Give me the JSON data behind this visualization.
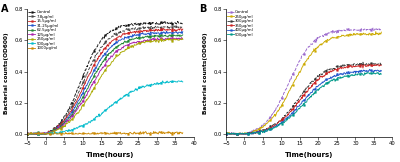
{
  "panel_A": {
    "title": "A",
    "xlabel": "Time(hours)",
    "ylabel": "Bacterial counts(OD600)",
    "xlim": [
      -5,
      40
    ],
    "ylim": [
      -0.02,
      0.8
    ],
    "xticks": [
      -5,
      0,
      5,
      10,
      15,
      20,
      25,
      30,
      35,
      40
    ],
    "yticks": [
      0.0,
      0.2,
      0.4,
      0.6,
      0.8
    ],
    "series": [
      {
        "label": "Control",
        "color": "#111111",
        "style": "--",
        "marker": "s",
        "lag": 9.5,
        "rate": 0.32,
        "ymax": 0.745
      },
      {
        "label": "7.8μg/ml",
        "color": "#444444",
        "style": "--",
        "marker": "s",
        "lag": 10.0,
        "rate": 0.3,
        "ymax": 0.72
      },
      {
        "label": "15.5μg/ml",
        "color": "#cc2222",
        "style": "-",
        "marker": "s",
        "lag": 10.5,
        "rate": 0.29,
        "ymax": 0.7
      },
      {
        "label": "31.25μg/ml",
        "color": "#2255cc",
        "style": "-",
        "marker": "s",
        "lag": 11.0,
        "rate": 0.28,
        "ymax": 0.68
      },
      {
        "label": "62.5μg/ml",
        "color": "#228833",
        "style": "-",
        "marker": "s",
        "lag": 11.5,
        "rate": 0.27,
        "ymax": 0.66
      },
      {
        "label": "125μg/ml",
        "color": "#aa22aa",
        "style": "-",
        "marker": "s",
        "lag": 12.0,
        "rate": 0.26,
        "ymax": 0.64
      },
      {
        "label": "250μg/ml",
        "color": "#aaaa00",
        "style": "-",
        "marker": "s",
        "lag": 13.0,
        "rate": 0.25,
        "ymax": 0.63
      },
      {
        "label": "500μg/ml",
        "color": "#00bbcc",
        "style": "-",
        "marker": "s",
        "lag": 17.0,
        "rate": 0.22,
        "ymax": 0.35
      },
      {
        "label": "1000μg/ml",
        "color": "#cc8800",
        "style": "-",
        "marker": "s",
        "lag": 18.0,
        "rate": 0.12,
        "ymax": 0.01
      }
    ]
  },
  "panel_B": {
    "title": "B",
    "xlabel": "Time(hours)",
    "ylabel": "Bacterial counts(OD600)",
    "xlim": [
      -5,
      40
    ],
    "ylim": [
      -0.02,
      0.8
    ],
    "xticks": [
      -5,
      0,
      5,
      10,
      15,
      20,
      25,
      30,
      35,
      40
    ],
    "yticks": [
      0.0,
      0.2,
      0.4,
      0.6,
      0.8
    ],
    "series": [
      {
        "label": "Control",
        "color": "#9966cc",
        "style": "--",
        "marker": "s",
        "lag": 12.0,
        "rate": 0.3,
        "ymax": 0.69
      },
      {
        "label": "250μg/ml",
        "color": "#ccaa00",
        "style": "-",
        "marker": "s",
        "lag": 13.0,
        "rate": 0.28,
        "ymax": 0.66
      },
      {
        "label": "300μg/ml",
        "color": "#333333",
        "style": "--",
        "marker": "s",
        "lag": 14.5,
        "rate": 0.28,
        "ymax": 0.46
      },
      {
        "label": "350μg/ml",
        "color": "#cc2222",
        "style": "-",
        "marker": "s",
        "lag": 15.0,
        "rate": 0.27,
        "ymax": 0.45
      },
      {
        "label": "400μg/ml",
        "color": "#2255cc",
        "style": "-",
        "marker": "s",
        "lag": 15.5,
        "rate": 0.26,
        "ymax": 0.415
      },
      {
        "label": "500μg/ml",
        "color": "#009988",
        "style": "-",
        "marker": "s",
        "lag": 16.0,
        "rate": 0.25,
        "ymax": 0.4
      }
    ]
  }
}
